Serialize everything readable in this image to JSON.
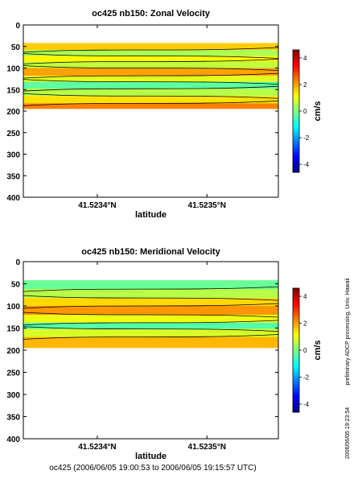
{
  "chart_data": [
    {
      "type": "heatmap",
      "title": "oc425 nb150: Zonal Velocity",
      "xlabel": "latitude",
      "ylabel": "",
      "x_tick_labels": [
        "41.5234°N",
        "41.5235°N"
      ],
      "y_ticks": [
        0,
        50,
        100,
        150,
        200,
        250,
        300,
        350,
        400
      ],
      "ylim": [
        400,
        0
      ],
      "colorbar_label": "cm/s",
      "colorbar_ticks": [
        -4,
        -2,
        0,
        2,
        4
      ],
      "colorbar_range": [
        -4.6,
        4.6
      ],
      "data_depth_range": [
        42,
        195
      ],
      "bands": [
        {
          "depth_range": [
            42,
            58
          ],
          "value": 1.6
        },
        {
          "depth_range": [
            58,
            72
          ],
          "value": 0.4
        },
        {
          "depth_range": [
            72,
            85
          ],
          "value": 1.2
        },
        {
          "depth_range": [
            85,
            100
          ],
          "value": 0.6
        },
        {
          "depth_range": [
            100,
            118
          ],
          "value": 2.0
        },
        {
          "depth_range": [
            118,
            132
          ],
          "value": 0.9
        },
        {
          "depth_range": [
            132,
            148
          ],
          "value": -0.3
        },
        {
          "depth_range": [
            148,
            165
          ],
          "value": 0.5
        },
        {
          "depth_range": [
            165,
            182
          ],
          "value": 1.4
        },
        {
          "depth_range": [
            182,
            195
          ],
          "value": 2.3
        }
      ]
    },
    {
      "type": "heatmap",
      "title": "oc425 nb150: Meridional Velocity",
      "xlabel": "latitude",
      "ylabel": "",
      "x_tick_labels": [
        "41.5234°N",
        "41.5235°N"
      ],
      "y_ticks": [
        0,
        50,
        100,
        150,
        200,
        250,
        300,
        350,
        400
      ],
      "ylim": [
        400,
        0
      ],
      "colorbar_label": "cm/s",
      "colorbar_ticks": [
        -4,
        -2,
        0,
        2,
        4
      ],
      "colorbar_range": [
        -4.6,
        4.6
      ],
      "data_depth_range": [
        42,
        195
      ],
      "bands": [
        {
          "depth_range": [
            42,
            62
          ],
          "value": -0.2
        },
        {
          "depth_range": [
            62,
            82
          ],
          "value": 0.5
        },
        {
          "depth_range": [
            82,
            100
          ],
          "value": 1.5
        },
        {
          "depth_range": [
            100,
            120
          ],
          "value": 2.1
        },
        {
          "depth_range": [
            120,
            138
          ],
          "value": 1.0
        },
        {
          "depth_range": [
            138,
            152
          ],
          "value": -0.4
        },
        {
          "depth_range": [
            152,
            170
          ],
          "value": 0.8
        },
        {
          "depth_range": [
            170,
            195
          ],
          "value": 1.8
        }
      ]
    }
  ],
  "side_text": "preliminary ADCP processing,   Univ. Hawaii",
  "side_timestamp": "2006/06/05 19:23:54",
  "footer": "oc425 (2006/06/05 19:00:53 to 2006/06/05 19:15:57 UTC)"
}
